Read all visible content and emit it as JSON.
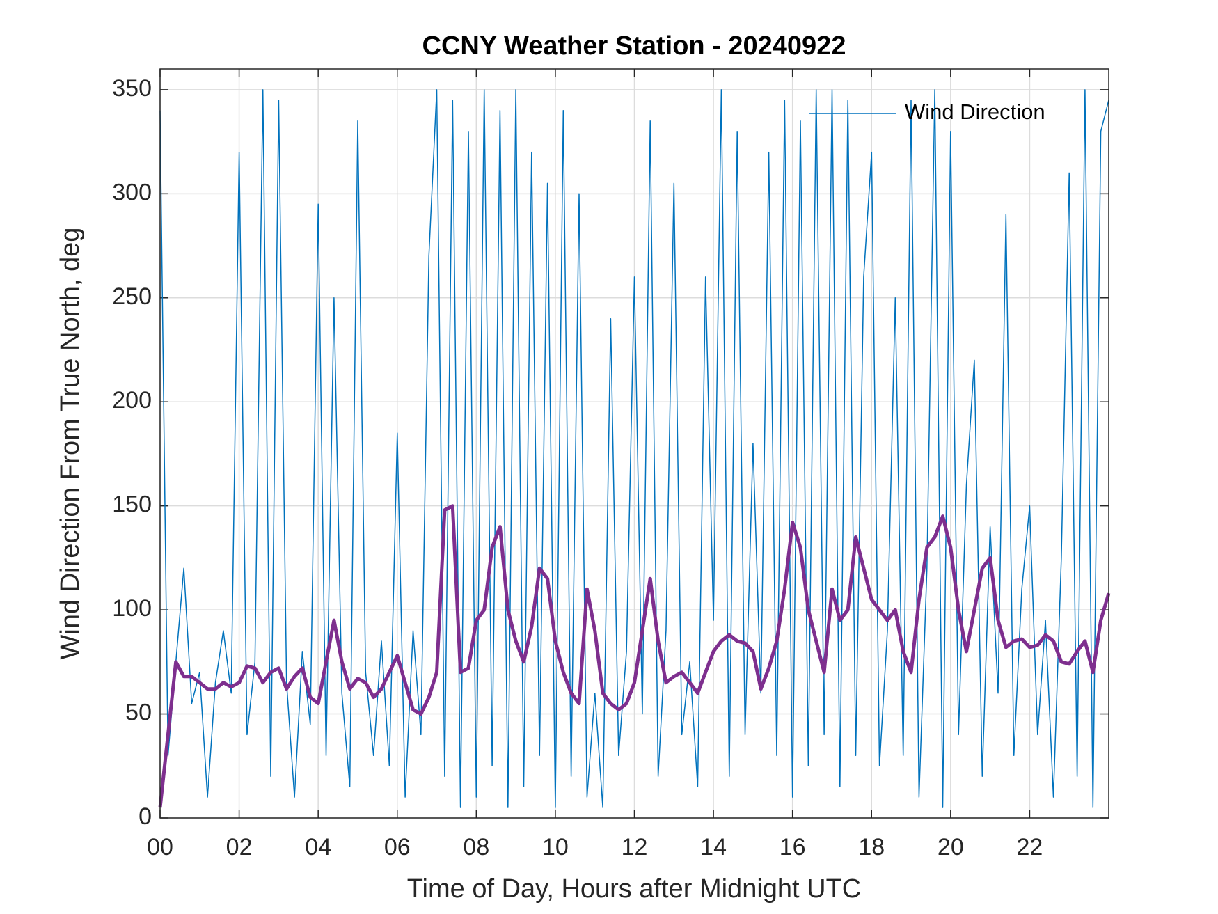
{
  "chart_data": {
    "type": "line",
    "title": "CCNY Weather Station - 20240922",
    "x_label": "Time of Day, Hours after Midnight UTC",
    "y_label": "Wind Direction From True North, deg",
    "x": [
      0,
      0.2,
      0.4,
      0.6,
      0.8,
      1,
      1.2,
      1.4,
      1.6,
      1.8,
      2,
      2.2,
      2.4,
      2.6,
      2.8,
      3,
      3.2,
      3.4,
      3.6,
      3.8,
      4,
      4.2,
      4.4,
      4.6,
      4.8,
      5,
      5.2,
      5.4,
      5.6,
      5.8,
      6,
      6.2,
      6.4,
      6.6,
      6.8,
      7,
      7.2,
      7.4,
      7.6,
      7.8,
      8,
      8.2,
      8.4,
      8.6,
      8.8,
      9,
      9.2,
      9.4,
      9.6,
      9.8,
      10,
      10.2,
      10.4,
      10.6,
      10.8,
      11,
      11.2,
      11.4,
      11.6,
      11.8,
      12,
      12.2,
      12.4,
      12.6,
      12.8,
      13,
      13.2,
      13.4,
      13.6,
      13.8,
      14,
      14.2,
      14.4,
      14.6,
      14.8,
      15,
      15.2,
      15.4,
      15.6,
      15.8,
      16,
      16.2,
      16.4,
      16.6,
      16.8,
      17,
      17.2,
      17.4,
      17.6,
      17.8,
      18,
      18.2,
      18.4,
      18.6,
      18.8,
      19,
      19.2,
      19.4,
      19.6,
      19.8,
      20,
      20.2,
      20.4,
      20.6,
      20.8,
      21,
      21.2,
      21.4,
      21.6,
      21.8,
      22,
      22.2,
      22.4,
      22.6,
      22.8,
      23,
      23.2,
      23.4,
      23.6,
      23.8,
      24
    ],
    "series": [
      {
        "name": "Wind Direction",
        "color": "#0072bd",
        "width": 1.5,
        "values": [
          340,
          30,
          75,
          120,
          55,
          70,
          10,
          65,
          90,
          60,
          320,
          40,
          75,
          350,
          20,
          345,
          65,
          10,
          80,
          45,
          295,
          30,
          250,
          60,
          15,
          335,
          70,
          30,
          85,
          25,
          185,
          10,
          90,
          40,
          270,
          350,
          20,
          345,
          5,
          330,
          10,
          350,
          25,
          340,
          5,
          350,
          15,
          320,
          30,
          305,
          5,
          340,
          20,
          300,
          10,
          60,
          5,
          240,
          30,
          80,
          260,
          50,
          335,
          20,
          90,
          305,
          40,
          75,
          15,
          260,
          95,
          350,
          20,
          330,
          40,
          180,
          60,
          320,
          30,
          345,
          10,
          335,
          25,
          350,
          40,
          350,
          15,
          345,
          30,
          260,
          320,
          25,
          90,
          250,
          30,
          345,
          10,
          120,
          350,
          5,
          330,
          40,
          160,
          220,
          20,
          140,
          60,
          290,
          30,
          110,
          150,
          40,
          95,
          10,
          125,
          310,
          20,
          350,
          5,
          330,
          345
        ]
      },
      {
        "color": "#7e2f8e",
        "width": 5,
        "values": [
          5,
          40,
          75,
          68,
          68,
          65,
          62,
          62,
          65,
          63,
          65,
          73,
          72,
          65,
          70,
          72,
          62,
          68,
          72,
          58,
          55,
          75,
          95,
          75,
          62,
          67,
          65,
          58,
          62,
          70,
          78,
          65,
          52,
          50,
          58,
          70,
          148,
          150,
          70,
          72,
          95,
          100,
          130,
          140,
          100,
          85,
          75,
          92,
          120,
          115,
          85,
          70,
          60,
          55,
          110,
          90,
          60,
          55,
          52,
          55,
          65,
          90,
          115,
          85,
          65,
          68,
          70,
          65,
          60,
          70,
          80,
          85,
          88,
          85,
          84,
          80,
          62,
          72,
          85,
          110,
          142,
          130,
          100,
          85,
          70,
          110,
          95,
          100,
          135,
          120,
          105,
          100,
          95,
          100,
          80,
          70,
          105,
          130,
          135,
          145,
          130,
          100,
          80,
          100,
          120,
          125,
          95,
          82,
          85,
          86,
          82,
          83,
          88,
          85,
          75,
          74,
          80,
          85,
          70,
          95,
          108
        ]
      }
    ],
    "xlim": [
      0,
      24
    ],
    "ylim": [
      0,
      360
    ],
    "xticks": [
      {
        "value": 0,
        "label": "00"
      },
      {
        "value": 2,
        "label": "02"
      },
      {
        "value": 4,
        "label": "04"
      },
      {
        "value": 6,
        "label": "06"
      },
      {
        "value": 8,
        "label": "08"
      },
      {
        "value": 10,
        "label": "10"
      },
      {
        "value": 12,
        "label": "12"
      },
      {
        "value": 14,
        "label": "14"
      },
      {
        "value": 16,
        "label": "16"
      },
      {
        "value": 18,
        "label": "18"
      },
      {
        "value": 20,
        "label": "20"
      },
      {
        "value": 22,
        "label": "22"
      }
    ],
    "yticks": [
      0,
      50,
      100,
      150,
      200,
      250,
      300,
      350
    ],
    "grid": true,
    "legend": "northeast"
  }
}
